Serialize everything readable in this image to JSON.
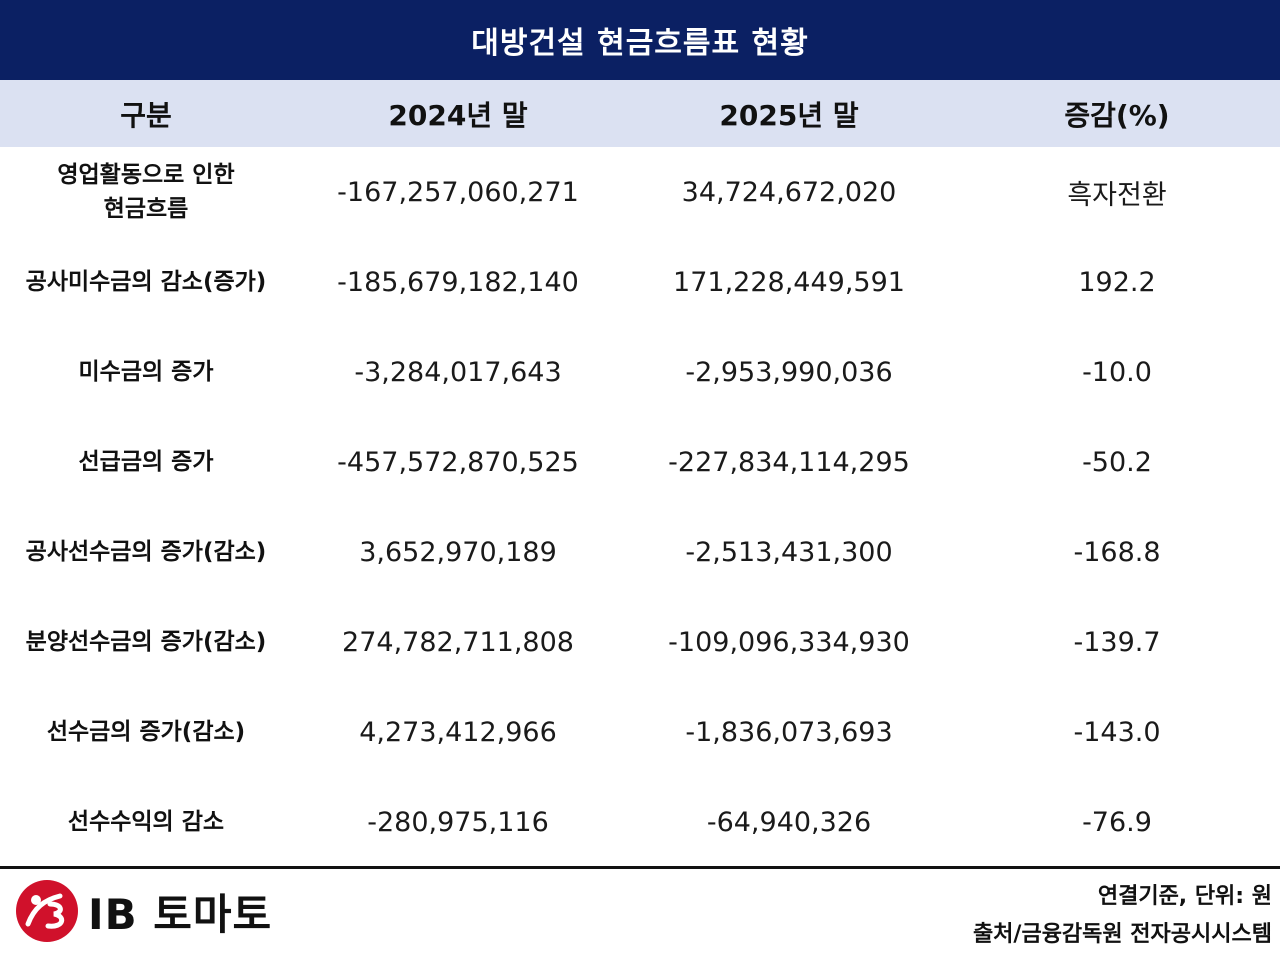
{
  "title": "대방건설 현금흐름표 현황",
  "colors": {
    "title_bg": "#0b2063",
    "header_bg": "#dbe1f2"
  },
  "table": {
    "headers": [
      "구분",
      "2024년 말",
      "2025년 말",
      "증감(%)"
    ],
    "rows": [
      {
        "label": "영업활동으로 인한\n현금흐름",
        "y2024": "-167,257,060,271",
        "y2025": "34,724,672,020",
        "change": "흑자전환"
      },
      {
        "label": "공사미수금의 감소(증가)",
        "y2024": "-185,679,182,140",
        "y2025": "171,228,449,591",
        "change": "192.2"
      },
      {
        "label": "미수금의 증가",
        "y2024": "-3,284,017,643",
        "y2025": "-2,953,990,036",
        "change": "-10.0"
      },
      {
        "label": "선급금의 증가",
        "y2024": "-457,572,870,525",
        "y2025": "-227,834,114,295",
        "change": "-50.2"
      },
      {
        "label": "공사선수금의 증가(감소)",
        "y2024": "3,652,970,189",
        "y2025": "-2,513,431,300",
        "change": "-168.8"
      },
      {
        "label": "분양선수금의 증가(감소)",
        "y2024": "274,782,711,808",
        "y2025": "-109,096,334,930",
        "change": "-139.7"
      },
      {
        "label": "선수금의 증가(감소)",
        "y2024": "4,273,412,966",
        "y2025": "-1,836,073,693",
        "change": "-143.0"
      },
      {
        "label": "선수수익의 감소",
        "y2024": "-280,975,116",
        "y2025": "-64,940,326",
        "change": "-76.9"
      }
    ]
  },
  "footer": {
    "logo_text": "IB 토마토",
    "note1": "연결기준, 단위: 원",
    "note2": "출처/금융감독원 전자공시시스템"
  }
}
